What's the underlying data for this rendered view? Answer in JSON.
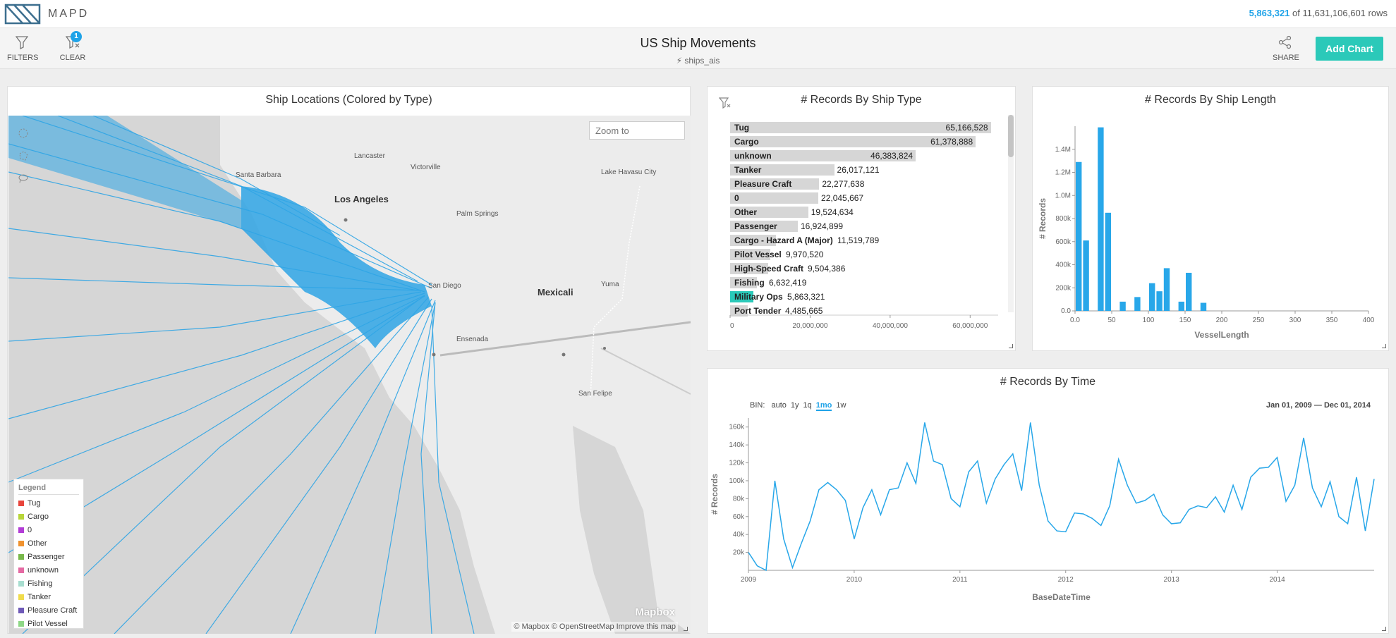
{
  "app": {
    "logo_text": "MAPD"
  },
  "rows": {
    "filtered": "5,863,321",
    "of_text": "of",
    "total": "11,631,106,601",
    "suffix": "rows"
  },
  "toolbar": {
    "filters_label": "FILTERS",
    "clear_label": "CLEAR",
    "clear_badge": "1",
    "share_label": "SHARE",
    "add_chart_label": "Add Chart"
  },
  "dashboard": {
    "title": "US Ship Movements",
    "table": "ships_ais"
  },
  "map_panel": {
    "title": "Ship Locations (Colored by Type)",
    "zoom_placeholder": "Zoom to",
    "cities": [
      "Lancaster",
      "Victorville",
      "Lake Havasu City",
      "Santa Barbara",
      "Los Angeles",
      "Palm Springs",
      "San Diego",
      "Mexicali",
      "Yuma",
      "Ensenada",
      "San Felipe"
    ],
    "legend_title": "Legend",
    "legend": [
      {
        "label": "Tug",
        "color": "#e8453c"
      },
      {
        "label": "Cargo",
        "color": "#b8d63a"
      },
      {
        "label": "0",
        "color": "#b23cd6"
      },
      {
        "label": "Other",
        "color": "#f0922e"
      },
      {
        "label": "Passenger",
        "color": "#78b84a"
      },
      {
        "label": "unknown",
        "color": "#e56aa3"
      },
      {
        "label": "Fishing",
        "color": "#a8ded0"
      },
      {
        "label": "Tanker",
        "color": "#f0dc4c"
      },
      {
        "label": "Pleasure Craft",
        "color": "#6f5ab8"
      },
      {
        "label": "Pilot Vessel",
        "color": "#8ed886"
      }
    ],
    "mapbox_logo": "Mapbox",
    "attribution": "© Mapbox  © OpenStreetMap  Improve this map"
  },
  "ship_type_panel": {
    "title": "# Records By Ship Type",
    "accent": "#2bc9b9"
  },
  "length_panel": {
    "title": "# Records By Ship Length"
  },
  "time_panel": {
    "title": "# Records By Time",
    "bin_label": "BIN:",
    "bins": [
      "auto",
      "1y",
      "1q",
      "1mo",
      "1w"
    ],
    "active_bin": "1mo",
    "date_start": "Jan 01, 2009",
    "date_sep": "—",
    "date_end": "Dec 01, 2014"
  },
  "chart_data": [
    {
      "type": "bar",
      "title": "# Records By Ship Type",
      "orientation": "horizontal",
      "categories": [
        "Tug",
        "Cargo",
        "unknown",
        "Tanker",
        "Pleasure Craft",
        "0",
        "Other",
        "Passenger",
        "Cargo - Hazard A (Major)",
        "Pilot Vessel",
        "High-Speed Craft",
        "Fishing",
        "Military Ops",
        "Port Tender"
      ],
      "values": [
        65166528,
        61378888,
        46383824,
        26017121,
        22277638,
        22045667,
        19524634,
        16924899,
        11519789,
        9970520,
        9504386,
        6632419,
        5863321,
        4485665
      ],
      "value_labels": [
        "65,166,528",
        "61,378,888",
        "46,383,824",
        "26,017,121",
        "22,277,638",
        "22,045,667",
        "19,524,634",
        "16,924,899",
        "11,519,789",
        "9,970,520",
        "9,504,386",
        "6,632,419",
        "5,863,321",
        "4,485,665"
      ],
      "selected_category": "Military Ops",
      "selected_value": 5863321,
      "xlim": [
        0,
        67000000
      ],
      "xticks": [
        0,
        20000000,
        40000000,
        60000000
      ],
      "xtick_labels": [
        "0",
        "20,000,000",
        "40,000,000",
        "60,000,000"
      ]
    },
    {
      "type": "bar",
      "title": "# Records By Ship Length",
      "xlabel": "VesselLength",
      "ylabel": "# Records",
      "bin_width": 10,
      "x": [
        0,
        10,
        30,
        40,
        60,
        80,
        100,
        110,
        120,
        140,
        150,
        170,
        180,
        200
      ],
      "values": [
        1290000,
        610000,
        1590000,
        850000,
        80000,
        120000,
        240000,
        170000,
        370000,
        80000,
        330000,
        70000,
        0,
        0
      ],
      "xlim": [
        0,
        400
      ],
      "ylim": [
        0,
        1600000
      ],
      "xticks": [
        0,
        50,
        100,
        150,
        200,
        250,
        300,
        350,
        400
      ],
      "xtick_labels": [
        "0.0",
        "50",
        "100",
        "150",
        "200",
        "250",
        "300",
        "350",
        "400"
      ],
      "yticks": [
        0,
        200000,
        400000,
        600000,
        800000,
        1000000,
        1200000,
        1400000
      ],
      "ytick_labels": [
        "0.0",
        "200k",
        "400k",
        "600k",
        "800k",
        "1.0M",
        "1.2M",
        "1.4M"
      ]
    },
    {
      "type": "line",
      "title": "# Records By Time",
      "xlabel": "BaseDateTime",
      "ylabel": "# Records",
      "x_start": "2009-01",
      "x_end": "2014-12",
      "values": [
        20000,
        5000,
        0,
        100000,
        35000,
        3000,
        30000,
        55000,
        90000,
        98000,
        90000,
        78000,
        35000,
        70000,
        90000,
        62000,
        90000,
        92000,
        120000,
        97000,
        165000,
        122000,
        118000,
        80000,
        71000,
        110000,
        122000,
        75000,
        102000,
        118000,
        130000,
        89000,
        165000,
        95000,
        55000,
        44000,
        43000,
        64000,
        63000,
        58000,
        50000,
        72000,
        124000,
        95000,
        75000,
        78000,
        85000,
        62000,
        52000,
        53000,
        68000,
        72000,
        70000,
        82000,
        65000,
        95000,
        68000,
        104000,
        114000,
        115000,
        126000,
        77000,
        95000,
        148000,
        92000,
        71000,
        99000,
        60000,
        52000,
        104000,
        44000,
        102000
      ],
      "ylim": [
        0,
        170000
      ],
      "yticks": [
        20000,
        40000,
        60000,
        80000,
        100000,
        120000,
        140000,
        160000
      ],
      "ytick_labels": [
        "20k",
        "40k",
        "60k",
        "80k",
        "100k",
        "120k",
        "140k",
        "160k"
      ],
      "xtick_labels": [
        "2009",
        "2010",
        "2011",
        "2012",
        "2013",
        "2014"
      ]
    }
  ]
}
